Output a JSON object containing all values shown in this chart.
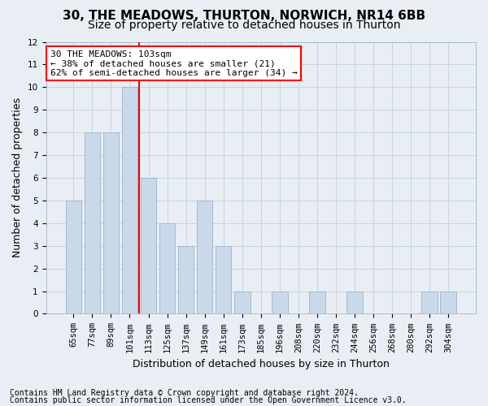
{
  "title1": "30, THE MEADOWS, THURTON, NORWICH, NR14 6BB",
  "title2": "Size of property relative to detached houses in Thurton",
  "xlabel": "Distribution of detached houses by size in Thurton",
  "ylabel": "Number of detached properties",
  "footer1": "Contains HM Land Registry data © Crown copyright and database right 2024.",
  "footer2": "Contains public sector information licensed under the Open Government Licence v3.0.",
  "categories": [
    "65sqm",
    "77sqm",
    "89sqm",
    "101sqm",
    "113sqm",
    "125sqm",
    "137sqm",
    "149sqm",
    "161sqm",
    "173sqm",
    "185sqm",
    "196sqm",
    "208sqm",
    "220sqm",
    "232sqm",
    "244sqm",
    "256sqm",
    "268sqm",
    "280sqm",
    "292sqm",
    "304sqm"
  ],
  "values": [
    5,
    8,
    8,
    10,
    6,
    4,
    3,
    5,
    3,
    1,
    0,
    1,
    0,
    1,
    0,
    1,
    0,
    0,
    0,
    1,
    1
  ],
  "bar_color": "#cad9e9",
  "bar_edgecolor": "#9ab4cc",
  "vline_x": 3.5,
  "vline_color": "red",
  "annotation_text": "30 THE MEADOWS: 103sqm\n← 38% of detached houses are smaller (21)\n62% of semi-detached houses are larger (34) →",
  "annotation_box_facecolor": "white",
  "annotation_box_edgecolor": "red",
  "ylim": [
    0,
    12
  ],
  "yticks": [
    0,
    1,
    2,
    3,
    4,
    5,
    6,
    7,
    8,
    9,
    10,
    11,
    12
  ],
  "grid_color": "#c8d4e0",
  "bg_color": "#e8eef4",
  "title_fontsize": 11,
  "subtitle_fontsize": 10,
  "axis_label_fontsize": 9,
  "tick_fontsize": 7.5,
  "footer_fontsize": 7,
  "annotation_fontsize": 8
}
